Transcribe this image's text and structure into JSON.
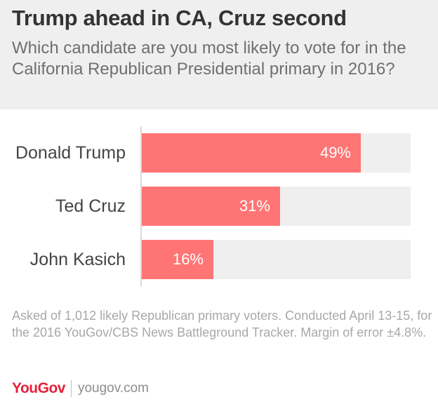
{
  "header": {
    "title": "Trump ahead in CA, Cruz second",
    "subtitle": "Which candidate are you most likely to vote for in the California Republican Presidential primary in 2016?"
  },
  "chart_data": {
    "type": "bar",
    "orientation": "horizontal",
    "categories": [
      "Donald Trump",
      "Ted Cruz",
      "John Kasich"
    ],
    "values": [
      49,
      31,
      16
    ],
    "value_labels": [
      "49%",
      "31%",
      "16%"
    ],
    "xlim": [
      0,
      49
    ],
    "grid": false,
    "colors": {
      "bar": "#ff7575",
      "track": "#efefef"
    }
  },
  "footnote": "Asked of 1,012 likely Republican primary voters. Conducted April 13-15, for the 2016 YouGov/CBS News Battleground Tracker. Margin of error ±4.8%.",
  "brand": {
    "logo": "YouGov",
    "site": "yougov.com",
    "logo_color": "#e4203a"
  }
}
